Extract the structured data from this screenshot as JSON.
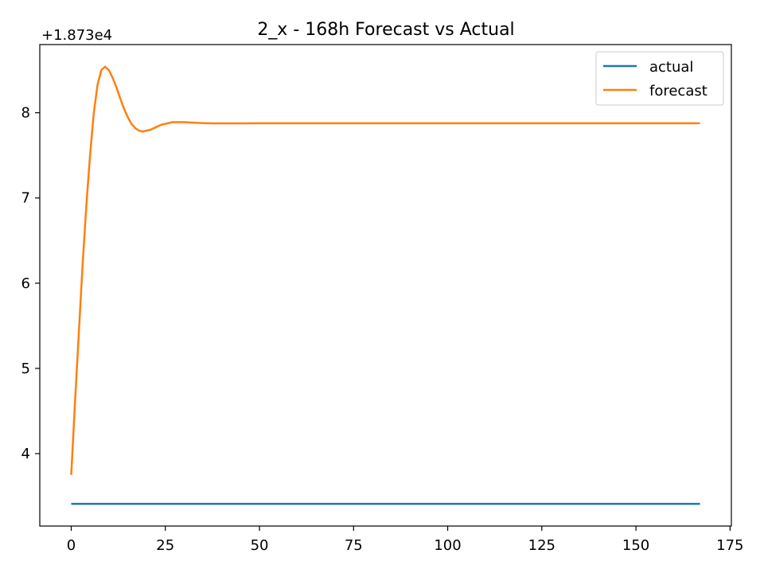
{
  "chart_data": {
    "type": "line",
    "title": "2_x - 168h Forecast vs Actual",
    "xlabel": "",
    "ylabel": "",
    "y_offset_label": "+1.873e4",
    "y_offset": 18730,
    "xlim": [
      -8.35,
      175.35
    ],
    "ylim": [
      3.15,
      8.8
    ],
    "x_ticks": [
      0,
      25,
      50,
      75,
      100,
      125,
      150,
      175
    ],
    "x_tick_labels": [
      "0",
      "25",
      "50",
      "75",
      "100",
      "125",
      "150",
      "175"
    ],
    "y_ticks": [
      4,
      5,
      6,
      7,
      8
    ],
    "y_tick_labels": [
      "4",
      "5",
      "6",
      "7",
      "8"
    ],
    "grid": false,
    "legend_position": "top-right",
    "series": [
      {
        "name": "actual",
        "color": "#1f77b4",
        "x": [
          0,
          167
        ],
        "y": [
          3.41,
          3.41
        ]
      },
      {
        "name": "forecast",
        "color": "#ff7f0e",
        "x": [
          0,
          1,
          2,
          3,
          4,
          5,
          6,
          7,
          8,
          9,
          10,
          11,
          12,
          13,
          14,
          15,
          16,
          17,
          18,
          19,
          20,
          21,
          22,
          23,
          24,
          25,
          26,
          27,
          28,
          29,
          30,
          32,
          34,
          36,
          38,
          40,
          45,
          50,
          60,
          80,
          100,
          120,
          140,
          167
        ],
        "y": [
          3.75,
          4.6,
          5.4,
          6.2,
          6.9,
          7.5,
          8.0,
          8.33,
          8.5,
          8.54,
          8.5,
          8.41,
          8.3,
          8.17,
          8.05,
          7.95,
          7.87,
          7.82,
          7.79,
          7.78,
          7.79,
          7.8,
          7.82,
          7.84,
          7.86,
          7.87,
          7.88,
          7.89,
          7.89,
          7.89,
          7.89,
          7.885,
          7.88,
          7.877,
          7.875,
          7.875,
          7.876,
          7.877,
          7.877,
          7.877,
          7.877,
          7.877,
          7.877,
          7.877
        ]
      }
    ]
  }
}
